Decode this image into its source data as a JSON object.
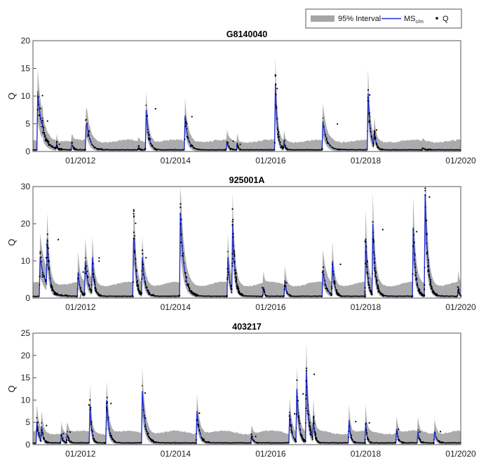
{
  "legend": {
    "interval_label": "95% Interval",
    "model_label_main": "MS",
    "model_label_sub": "c/m",
    "obs_label": "Q"
  },
  "colors": {
    "interval": "#a6a6a6",
    "model": "#1f2fd6",
    "obs": "#000000",
    "axis": "#555555"
  },
  "chart_data": [
    {
      "type": "line",
      "title": "G8140040",
      "ylabel": "Q",
      "xlim": [
        "2011-01",
        "2020-01"
      ],
      "ylim": [
        0,
        20
      ],
      "yticks": [
        0,
        5,
        10,
        15,
        20
      ],
      "xtick_labels": [
        "01/2012",
        "01/2014",
        "01/2016",
        "01/2018",
        "01/2020"
      ],
      "baseline": 0.3,
      "interval_base": [
        0.4,
        1.2
      ],
      "peaks": [
        {
          "t": 2011.1,
          "q": 10.5,
          "dur": 0.3
        },
        {
          "t": 2011.2,
          "q": 5.5,
          "dur": 0.12
        },
        {
          "t": 2011.5,
          "q": 1.4,
          "dur": 0.06
        },
        {
          "t": 2011.82,
          "q": 1.6,
          "dur": 0.08
        },
        {
          "t": 2012.12,
          "q": 6.0,
          "dur": 0.2
        },
        {
          "t": 2013.22,
          "q": 1.0,
          "dur": 0.06
        },
        {
          "t": 2013.38,
          "q": 8.0,
          "dur": 0.15
        },
        {
          "t": 2014.2,
          "q": 6.5,
          "dur": 0.18
        },
        {
          "t": 2015.08,
          "q": 2.0,
          "dur": 0.1
        },
        {
          "t": 2015.3,
          "q": 1.4,
          "dur": 0.06
        },
        {
          "t": 2016.1,
          "q": 12.3,
          "dur": 0.12
        },
        {
          "t": 2016.28,
          "q": 2.0,
          "dur": 0.08
        },
        {
          "t": 2017.1,
          "q": 5.5,
          "dur": 0.22
        },
        {
          "t": 2018.05,
          "q": 10.5,
          "dur": 0.14
        },
        {
          "t": 2018.18,
          "q": 4.0,
          "dur": 0.12
        },
        {
          "t": 2019.2,
          "q": 0.6,
          "dur": 0.12
        }
      ]
    },
    {
      "type": "line",
      "title": "925001A",
      "ylabel": "Q",
      "xlim": [
        "2011-01",
        "2020-01"
      ],
      "ylim": [
        0,
        30
      ],
      "yticks": [
        0,
        10,
        20,
        30
      ],
      "xtick_labels": [
        "01/2012",
        "01/2014",
        "01/2016",
        "01/2018",
        "01/2020"
      ],
      "baseline": 0.5,
      "interval_base": [
        0.6,
        3.0
      ],
      "peaks": [
        {
          "t": 2011.15,
          "q": 11.0,
          "dur": 0.35
        },
        {
          "t": 2011.3,
          "q": 16.0,
          "dur": 0.15
        },
        {
          "t": 2011.95,
          "q": 7.0,
          "dur": 0.12
        },
        {
          "t": 2012.1,
          "q": 10.0,
          "dur": 0.18
        },
        {
          "t": 2012.25,
          "q": 11.0,
          "dur": 0.12
        },
        {
          "t": 2013.12,
          "q": 21.0,
          "dur": 0.12
        },
        {
          "t": 2013.3,
          "q": 11.0,
          "dur": 0.16
        },
        {
          "t": 2014.1,
          "q": 23.0,
          "dur": 0.22
        },
        {
          "t": 2015.1,
          "q": 11.0,
          "dur": 0.12
        },
        {
          "t": 2015.2,
          "q": 20.0,
          "dur": 0.14
        },
        {
          "t": 2015.85,
          "q": 3.0,
          "dur": 0.06
        },
        {
          "t": 2016.3,
          "q": 4.5,
          "dur": 0.1
        },
        {
          "t": 2017.1,
          "q": 7.5,
          "dur": 0.2
        },
        {
          "t": 2017.3,
          "q": 10.0,
          "dur": 0.12
        },
        {
          "t": 2018.0,
          "q": 16.0,
          "dur": 0.12
        },
        {
          "t": 2018.15,
          "q": 20.0,
          "dur": 0.14
        },
        {
          "t": 2019.0,
          "q": 19.0,
          "dur": 0.14
        },
        {
          "t": 2019.25,
          "q": 28.0,
          "dur": 0.16
        },
        {
          "t": 2019.95,
          "q": 3.0,
          "dur": 0.05
        }
      ]
    },
    {
      "type": "line",
      "title": "403217",
      "ylabel": "Q",
      "xlim": [
        "2011-01",
        "2020-01"
      ],
      "ylim": [
        0,
        25
      ],
      "yticks": [
        0,
        5,
        10,
        15,
        20,
        25
      ],
      "xtick_labels": [
        "01/2012",
        "01/2014",
        "01/2016",
        "01/2018",
        "01/2020"
      ],
      "baseline": 0.4,
      "interval_base": [
        0.5,
        2.0
      ],
      "peaks": [
        {
          "t": 2011.08,
          "q": 5.5,
          "dur": 0.12
        },
        {
          "t": 2011.18,
          "q": 4.5,
          "dur": 0.1
        },
        {
          "t": 2011.6,
          "q": 2.5,
          "dur": 0.08
        },
        {
          "t": 2011.72,
          "q": 3.0,
          "dur": 0.08
        },
        {
          "t": 2012.2,
          "q": 9.0,
          "dur": 0.1
        },
        {
          "t": 2012.55,
          "q": 10.0,
          "dur": 0.14
        },
        {
          "t": 2013.3,
          "q": 12.0,
          "dur": 0.18
        },
        {
          "t": 2014.45,
          "q": 7.5,
          "dur": 0.16
        },
        {
          "t": 2015.6,
          "q": 2.0,
          "dur": 0.1
        },
        {
          "t": 2016.4,
          "q": 7.0,
          "dur": 0.14
        },
        {
          "t": 2016.55,
          "q": 12.5,
          "dur": 0.14
        },
        {
          "t": 2016.75,
          "q": 16.5,
          "dur": 0.14
        },
        {
          "t": 2016.9,
          "q": 6.0,
          "dur": 0.1
        },
        {
          "t": 2017.65,
          "q": 5.5,
          "dur": 0.1
        },
        {
          "t": 2018.0,
          "q": 5.0,
          "dur": 0.08
        },
        {
          "t": 2018.65,
          "q": 3.5,
          "dur": 0.1
        },
        {
          "t": 2019.1,
          "q": 3.0,
          "dur": 0.08
        },
        {
          "t": 2019.45,
          "q": 3.0,
          "dur": 0.12
        }
      ]
    }
  ]
}
